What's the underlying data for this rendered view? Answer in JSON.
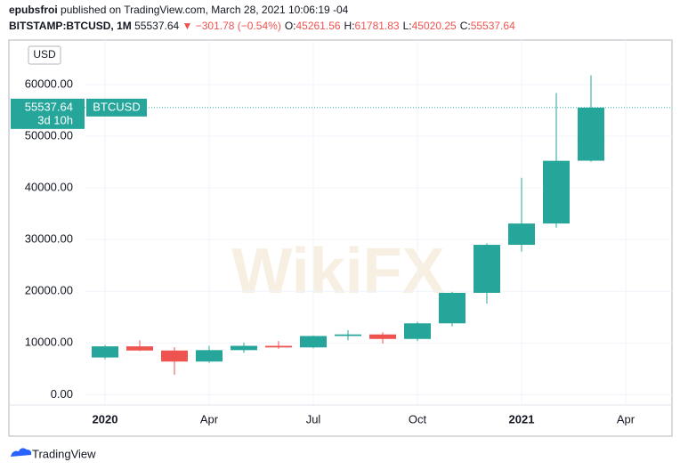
{
  "header": {
    "author": "epubsfroi",
    "published": "published on TradingView.com, March 28, 2021 10:06:19 -04",
    "symbol": "BITSTAMP:BTCUSD, 1M",
    "last": "55537.64",
    "change": "▼ −301.78 (−0.54%)",
    "ohlc": [
      {
        "label": "O:",
        "value": "45261.56"
      },
      {
        "label": "H:",
        "value": "61781.83"
      },
      {
        "label": "L:",
        "value": "45020.25"
      },
      {
        "label": "C:",
        "value": "55537.64"
      }
    ]
  },
  "chart_data": {
    "type": "candlestick",
    "currency": "USD",
    "countdown": "3d 10h",
    "watermark": "WikiFX",
    "categories": [
      "2020",
      null,
      null,
      "Apr",
      null,
      null,
      "Jul",
      null,
      null,
      "Oct",
      null,
      null,
      "2021",
      null,
      null,
      "Apr"
    ],
    "series": [
      {
        "name": "BTCUSD",
        "up_color": "#26a69a",
        "down_color": "#ef5350",
        "open": [
          7195,
          9350,
          8545,
          6410,
          8620,
          9450,
          9140,
          11350,
          11650,
          10780,
          13800,
          19700,
          28990,
          33110,
          45261.56,
          null
        ],
        "high": [
          9578,
          10500,
          9190,
          9460,
          10080,
          10380,
          11450,
          12470,
          12080,
          14100,
          19900,
          29300,
          41950,
          58350,
          61781.83,
          null
        ],
        "low": [
          6850,
          8450,
          3850,
          6150,
          8100,
          8900,
          8970,
          10520,
          9880,
          10380,
          13200,
          17600,
          27700,
          32300,
          45020.25,
          null
        ],
        "close": [
          9350,
          8545,
          6410,
          8620,
          9450,
          9140,
          11350,
          11650,
          10780,
          13800,
          19700,
          28990,
          33110,
          45240,
          55537.64,
          null
        ]
      }
    ],
    "ylim": [
      -2000,
      68600
    ],
    "yticks": [
      {
        "value": 0,
        "label": "0.00"
      },
      {
        "value": 10000,
        "label": "10000.00"
      },
      {
        "value": 20000,
        "label": "20000.00"
      },
      {
        "value": 30000,
        "label": "30000.00"
      },
      {
        "value": 40000,
        "label": "40000.00"
      },
      {
        "value": 50000,
        "label": "50000.00"
      },
      {
        "value": 60000,
        "label": "60000.00"
      }
    ],
    "grid": true
  },
  "footer": {
    "brand": "TradingView"
  }
}
